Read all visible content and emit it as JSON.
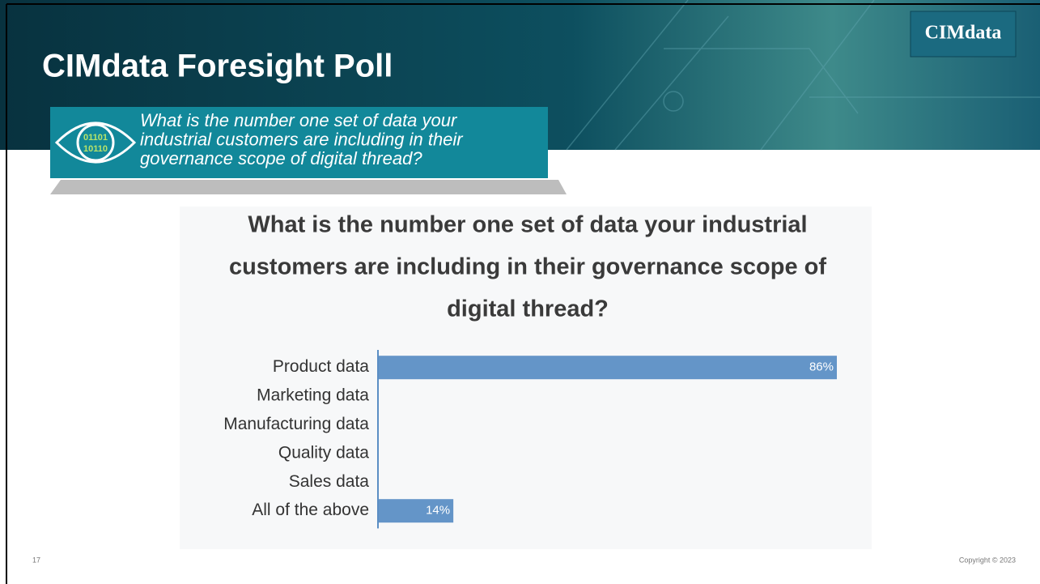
{
  "header": {
    "title": "CIMdata Foresight Poll",
    "logo": "CIMdata"
  },
  "callout": {
    "lines": [
      "What is the number one set of data your",
      "industrial customers are including in their",
      "governance scope of digital thread?"
    ]
  },
  "chart_data": {
    "type": "hbar",
    "title": [
      "What is the number one set of data your industrial",
      "customers are including in their governance scope of",
      "digital thread?"
    ],
    "categories": [
      "Product data",
      "Marketing data",
      "Manufacturing data",
      "Quality data",
      "Sales data",
      "All of the above"
    ],
    "values": [
      86,
      0,
      0,
      0,
      0,
      14
    ],
    "value_labels": [
      "86%",
      null,
      null,
      null,
      null,
      "14%"
    ],
    "color": "#6495c8"
  },
  "footer": {
    "page_number": "17",
    "copyright": "Copyright © 2023"
  }
}
